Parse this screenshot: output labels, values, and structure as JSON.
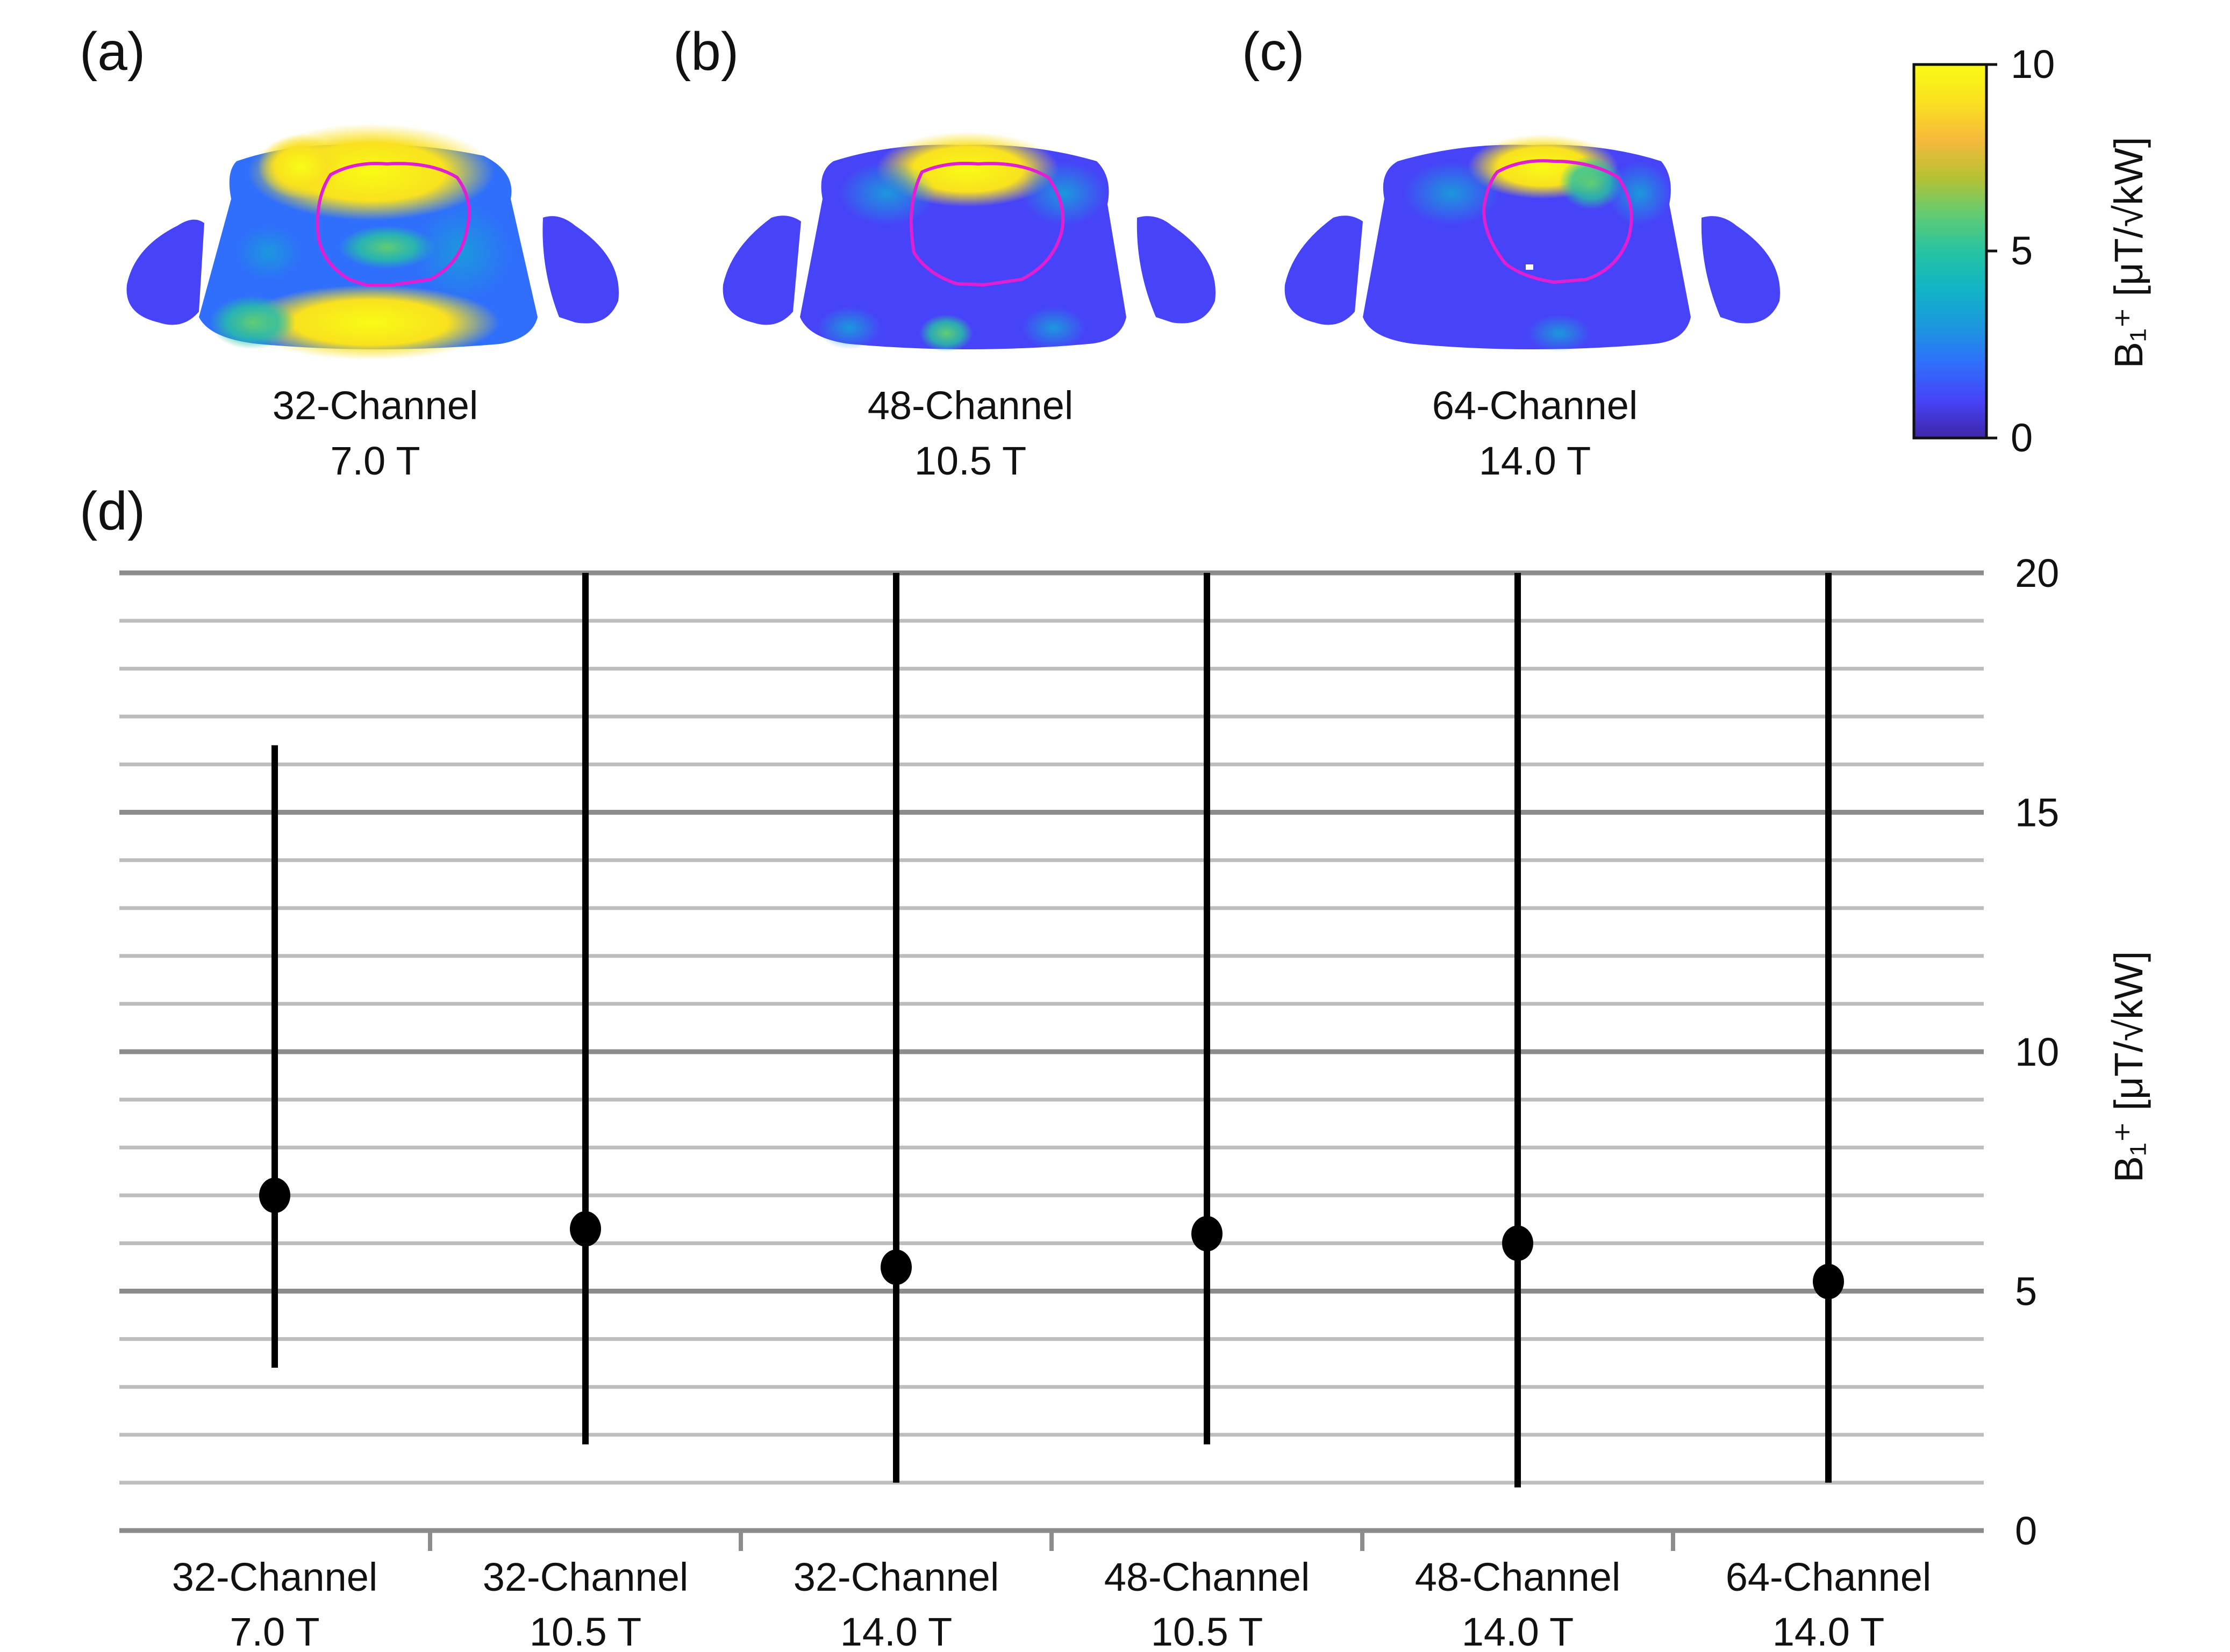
{
  "panels": {
    "a": {
      "letter": "(a)",
      "line1": "32-Channel",
      "line2": "7.0 T"
    },
    "b": {
      "letter": "(b)",
      "line1": "48-Channel",
      "line2": "10.5 T"
    },
    "c": {
      "letter": "(c)",
      "line1": "64-Channel",
      "line2": "14.0 T"
    },
    "d": {
      "letter": "(d)"
    }
  },
  "colorbar": {
    "title": "B₁⁺ [μT/√kW]",
    "ticks": [
      "10",
      "5",
      "0"
    ],
    "range": [
      0,
      10
    ],
    "colormap": [
      "#3e26a8",
      "#4743f8",
      "#2f6ffb",
      "#1c98dd",
      "#11b4c6",
      "#26c3a2",
      "#63cc72",
      "#b9c133",
      "#f6ba3c",
      "#f9e11f",
      "#f9fb15"
    ],
    "roi_outline_color": "#e01fd3"
  },
  "chart_data": {
    "type": "scatter",
    "title": "",
    "xlabel": "",
    "ylabel": "B₁⁺ [μT/√kW]",
    "ylim": [
      0,
      20
    ],
    "yticks": [
      "20",
      "15",
      "10",
      "5",
      "0"
    ],
    "ytick_values": [
      20,
      15,
      10,
      5,
      0
    ],
    "y_axis_side": "right",
    "grid": true,
    "categories": [
      {
        "line1": "32-Channel",
        "line2": "7.0 T"
      },
      {
        "line1": "32-Channel",
        "line2": "10.5 T"
      },
      {
        "line1": "32-Channel",
        "line2": "14.0 T"
      },
      {
        "line1": "48-Channel",
        "line2": "10.5 T"
      },
      {
        "line1": "48-Channel",
        "line2": "14.0 T"
      },
      {
        "line1": "64-Channel",
        "line2": "14.0 T"
      }
    ],
    "mean": [
      7.0,
      6.3,
      5.5,
      6.2,
      6.0,
      5.2
    ],
    "min": [
      3.4,
      1.8,
      1.0,
      1.8,
      0.9,
      1.0
    ],
    "max": [
      16.4,
      20.0,
      20.0,
      20.0,
      20.0,
      20.0
    ],
    "colors": {
      "marker": "#000000",
      "major_grid": "#8c8c8c",
      "minor_grid": "#bdbdbd"
    }
  }
}
